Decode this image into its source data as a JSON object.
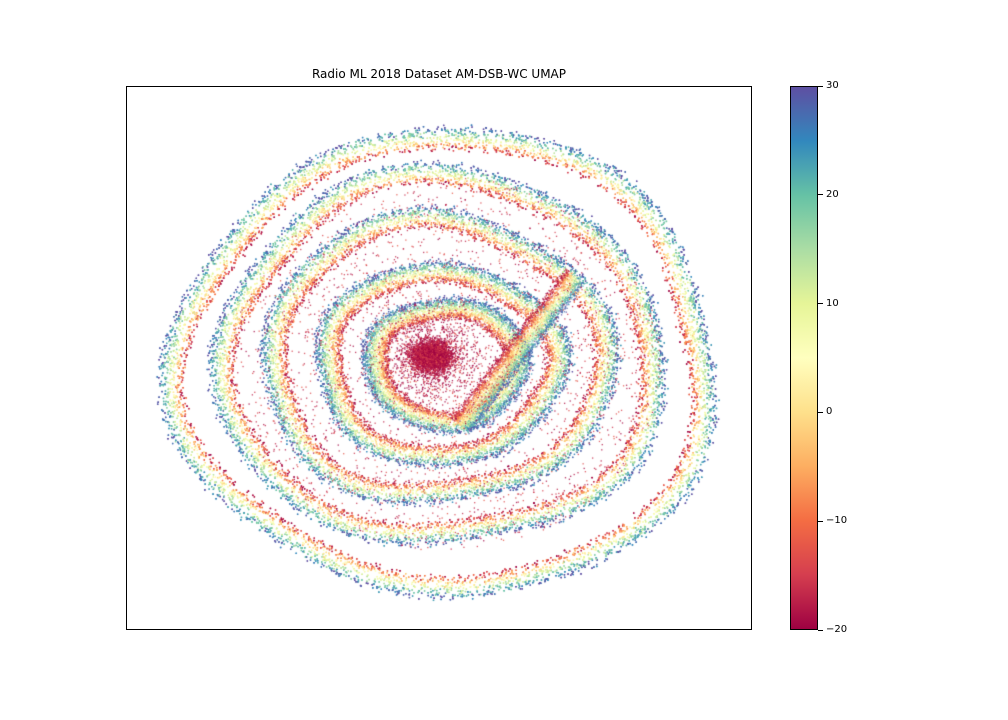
{
  "chart_data": {
    "type": "scatter",
    "title": "Radio ML 2018 Dataset AM-DSB-WC UMAP",
    "xlabel": "",
    "ylabel": "",
    "axes_ticks_visible": false,
    "colorbar": {
      "colormap": "Spectral",
      "range": [
        -20,
        30
      ],
      "ticks": [
        30,
        20,
        10,
        0,
        -10,
        -20
      ],
      "tick_labels": [
        "30",
        "20",
        "10",
        "0",
        "−10",
        "−20"
      ]
    },
    "structure": {
      "description_of_points": "Points form concentric ring/spiral bands; red (low SNR) cluster at center, blue (high SNR) on band edges",
      "central_cluster": {
        "x": 0.0,
        "y": 0.0,
        "color_value": -18
      },
      "rings": [
        {
          "rx": 0.25,
          "ry": 0.23,
          "center": [
            0.0,
            0.0
          ]
        },
        {
          "rx": 0.4,
          "ry": 0.37,
          "center": [
            -0.02,
            0.0
          ]
        },
        {
          "rx": 0.58,
          "ry": 0.55,
          "center": [
            -0.03,
            0.02
          ]
        },
        {
          "rx": 0.75,
          "ry": 0.72,
          "center": [
            -0.02,
            0.02
          ]
        },
        {
          "rx": 0.92,
          "ry": 0.9,
          "center": [
            0.0,
            0.0
          ]
        }
      ],
      "diagonal_band": {
        "from": [
          0.05,
          -0.25
        ],
        "to": [
          0.45,
          0.35
        ]
      }
    },
    "colors": {
      "low": "#9e0142",
      "mid": "#ffffbf",
      "high": "#5e4fa2"
    }
  }
}
